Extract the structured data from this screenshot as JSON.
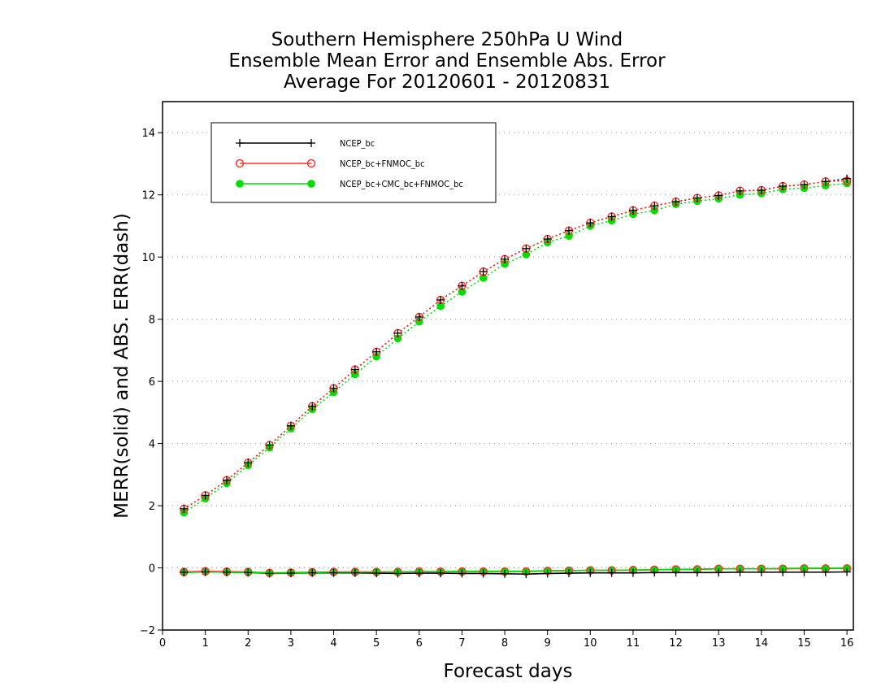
{
  "chart_data": {
    "type": "line",
    "title": [
      "Southern Hemisphere 250hPa U Wind",
      "Ensemble Mean Error and Ensemble Abs. Error",
      "Average For 20120601 - 20120831"
    ],
    "xlabel": "Forecast days",
    "ylabel": "MERR(solid) and ABS. ERR(dash)",
    "xlim": [
      0,
      16.15
    ],
    "ylim": [
      -2,
      15
    ],
    "xticks": [
      0,
      1,
      2,
      3,
      4,
      5,
      6,
      7,
      8,
      9,
      10,
      11,
      12,
      13,
      14,
      15,
      16
    ],
    "yticks": [
      -2,
      0,
      2,
      4,
      6,
      8,
      10,
      12,
      14
    ],
    "grid": "horizontal-dotted",
    "legend_position": "top-left",
    "x": [
      0.5,
      1,
      1.5,
      2,
      2.5,
      3,
      3.5,
      4,
      4.5,
      5,
      5.5,
      6,
      6.5,
      7,
      7.5,
      8,
      8.5,
      9,
      9.5,
      10,
      10.5,
      11,
      11.5,
      12,
      12.5,
      13,
      13.5,
      14,
      14.5,
      15,
      15.5,
      16
    ],
    "series": [
      {
        "name": "NCEP_bc",
        "color": "#000000",
        "marker": "plus",
        "merr": [
          -0.14,
          -0.13,
          -0.14,
          -0.15,
          -0.18,
          -0.17,
          -0.16,
          -0.16,
          -0.16,
          -0.17,
          -0.18,
          -0.17,
          -0.17,
          -0.18,
          -0.18,
          -0.19,
          -0.2,
          -0.18,
          -0.17,
          -0.16,
          -0.16,
          -0.16,
          -0.15,
          -0.15,
          -0.15,
          -0.15,
          -0.14,
          -0.14,
          -0.14,
          -0.14,
          -0.14,
          -0.13
        ],
        "abs_err": [
          1.9,
          2.33,
          2.82,
          3.38,
          3.95,
          4.57,
          5.2,
          5.78,
          6.38,
          6.95,
          7.55,
          8.07,
          8.62,
          9.07,
          9.53,
          9.93,
          10.27,
          10.58,
          10.85,
          11.1,
          11.3,
          11.5,
          11.65,
          11.78,
          11.9,
          11.98,
          12.13,
          12.15,
          12.28,
          12.33,
          12.43,
          12.52
        ]
      },
      {
        "name": "NCEP_bc+FNMOC_bc",
        "color": "#ff3030",
        "marker": "open-circle",
        "merr": [
          -0.13,
          -0.11,
          -0.12,
          -0.13,
          -0.16,
          -0.15,
          -0.14,
          -0.13,
          -0.13,
          -0.13,
          -0.13,
          -0.12,
          -0.12,
          -0.12,
          -0.12,
          -0.12,
          -0.12,
          -0.1,
          -0.09,
          -0.08,
          -0.08,
          -0.07,
          -0.06,
          -0.05,
          -0.05,
          -0.03,
          -0.03,
          -0.03,
          -0.03,
          -0.02,
          -0.02,
          -0.02
        ],
        "abs_err": [
          1.9,
          2.33,
          2.82,
          3.38,
          3.95,
          4.57,
          5.2,
          5.78,
          6.38,
          6.95,
          7.55,
          8.07,
          8.62,
          9.07,
          9.53,
          9.93,
          10.27,
          10.58,
          10.85,
          11.1,
          11.3,
          11.5,
          11.65,
          11.78,
          11.9,
          11.98,
          12.13,
          12.15,
          12.28,
          12.33,
          12.43,
          12.45
        ]
      },
      {
        "name": "NCEP_bc+CMC_bc+FNMOC_bc",
        "color": "#00dd00",
        "marker": "filled-circle",
        "merr": [
          -0.15,
          -0.13,
          -0.14,
          -0.15,
          -0.17,
          -0.16,
          -0.15,
          -0.14,
          -0.14,
          -0.13,
          -0.13,
          -0.12,
          -0.12,
          -0.11,
          -0.11,
          -0.11,
          -0.11,
          -0.09,
          -0.09,
          -0.08,
          -0.08,
          -0.07,
          -0.06,
          -0.05,
          -0.04,
          -0.03,
          -0.03,
          -0.03,
          -0.02,
          -0.01,
          -0.01,
          -0.01
        ],
        "abs_err": [
          1.78,
          2.23,
          2.72,
          3.3,
          3.87,
          4.48,
          5.1,
          5.65,
          6.23,
          6.8,
          7.38,
          7.92,
          8.42,
          8.88,
          9.33,
          9.78,
          10.08,
          10.47,
          10.68,
          11.0,
          11.17,
          11.38,
          11.5,
          11.7,
          11.8,
          11.88,
          12.0,
          12.05,
          12.18,
          12.22,
          12.3,
          12.37
        ]
      }
    ]
  }
}
